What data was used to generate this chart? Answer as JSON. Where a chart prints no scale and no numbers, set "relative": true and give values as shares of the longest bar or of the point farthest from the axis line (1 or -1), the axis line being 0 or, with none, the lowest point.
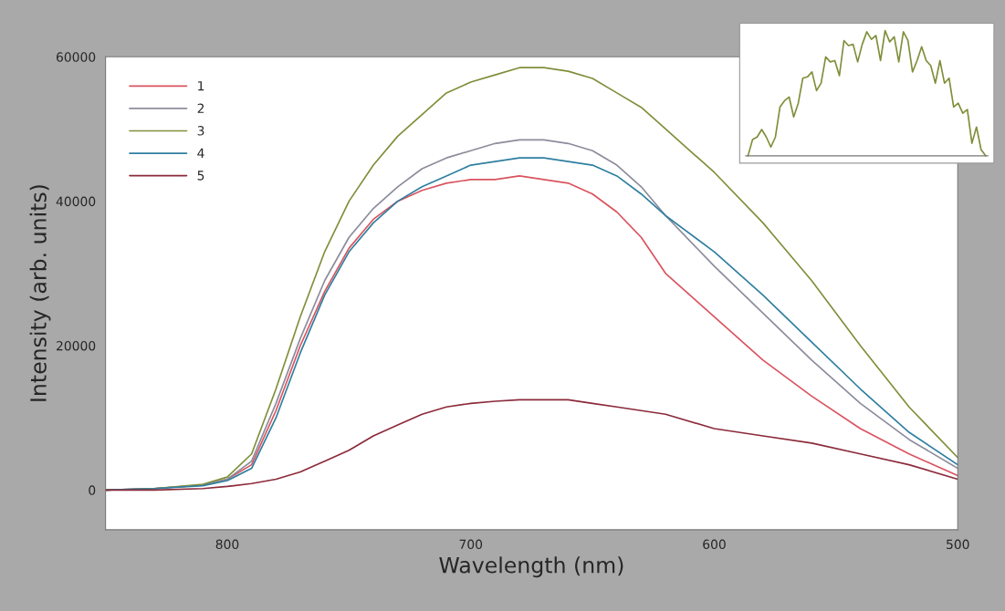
{
  "chart_data": [
    {
      "type": "line",
      "xlabel": "Wavelength (nm)",
      "ylabel": "Intensity (arb. units)",
      "x": [
        850,
        830,
        810,
        800,
        790,
        780,
        770,
        760,
        750,
        740,
        730,
        720,
        710,
        700,
        690,
        680,
        670,
        660,
        650,
        640,
        630,
        620,
        600,
        580,
        560,
        540,
        520,
        500
      ],
      "xlim": [
        850,
        500
      ],
      "xticks": [
        800,
        700,
        600,
        500
      ],
      "ylim": [
        -5500,
        60000
      ],
      "yticks": [
        0,
        20000,
        40000,
        60000
      ],
      "grid": false,
      "legend": "top left",
      "marker": "none",
      "line_style": "solid",
      "series": [
        {
          "name": "1",
          "color": "#d9545f",
          "values": [
            0,
            200,
            700,
            1500,
            3500,
            11000,
            20000,
            27500,
            33500,
            37500,
            40000,
            41500,
            42500,
            43000,
            43000,
            43500,
            43000,
            42500,
            41000,
            38500,
            35000,
            30000,
            24000,
            18000,
            13000,
            8500,
            5000,
            2000
          ]
        },
        {
          "name": "2",
          "color": "#8c8c9c",
          "values": [
            0,
            200,
            700,
            1500,
            4000,
            12000,
            21000,
            29000,
            35000,
            39000,
            42000,
            44500,
            46000,
            47000,
            48000,
            48500,
            48500,
            48000,
            47000,
            45000,
            42000,
            38000,
            31000,
            24500,
            18000,
            12000,
            7000,
            3000
          ]
        },
        {
          "name": "3",
          "color": "#7f8f3a",
          "values": [
            0,
            200,
            800,
            1800,
            5000,
            14000,
            24000,
            33000,
            40000,
            45000,
            49000,
            52000,
            55000,
            56500,
            57500,
            58500,
            58500,
            58000,
            57000,
            55000,
            53000,
            50000,
            44000,
            37000,
            29000,
            20000,
            11500,
            4500
          ]
        },
        {
          "name": "4",
          "color": "#2f7fa0",
          "values": [
            0,
            200,
            600,
            1300,
            3000,
            10000,
            19000,
            27000,
            33000,
            37000,
            40000,
            42000,
            43500,
            45000,
            45500,
            46000,
            46000,
            45500,
            45000,
            43500,
            41000,
            38000,
            33000,
            27000,
            20500,
            14000,
            8000,
            3500
          ]
        },
        {
          "name": "5",
          "color": "#8b2a3a",
          "values": [
            0,
            0,
            200,
            500,
            900,
            1500,
            2500,
            4000,
            5500,
            7500,
            9000,
            10500,
            11500,
            12000,
            12300,
            12500,
            12500,
            12500,
            12000,
            11500,
            11000,
            10500,
            8500,
            7500,
            6500,
            5000,
            3500,
            1500
          ]
        }
      ]
    },
    {
      "type": "line",
      "relative": true,
      "grid": false,
      "marker": "none",
      "line_style": "solid",
      "categories": [
        null,
        null,
        null,
        null,
        null,
        null,
        null,
        null,
        null,
        null,
        null,
        null,
        null,
        null,
        null,
        null,
        null,
        null,
        null,
        null,
        null,
        null,
        null,
        null,
        null,
        null,
        null,
        null,
        null,
        null,
        null,
        null,
        null,
        null,
        null,
        null,
        null,
        null,
        null,
        null,
        null,
        null,
        null,
        null,
        null,
        null,
        null,
        null,
        null,
        null,
        null,
        null,
        null
      ],
      "series": [
        {
          "color": "#7f8f3a",
          "values": [
            0,
            0.13,
            0.15,
            0.21,
            0.15,
            0.07,
            0.15,
            0.39,
            0.44,
            0.47,
            0.31,
            0.42,
            0.62,
            0.63,
            0.67,
            0.52,
            0.58,
            0.79,
            0.75,
            0.76,
            0.64,
            0.92,
            0.88,
            0.89,
            0.75,
            0.89,
            0.99,
            0.93,
            0.96,
            0.76,
            1,
            0.91,
            0.95,
            0.75,
            0.99,
            0.92,
            0.67,
            0.76,
            0.87,
            0.76,
            0.72,
            0.58,
            0.76,
            0.58,
            0.62,
            0.39,
            0.42,
            0.34,
            0.37,
            0.1,
            0.23,
            0.05,
            0
          ]
        }
      ]
    }
  ]
}
